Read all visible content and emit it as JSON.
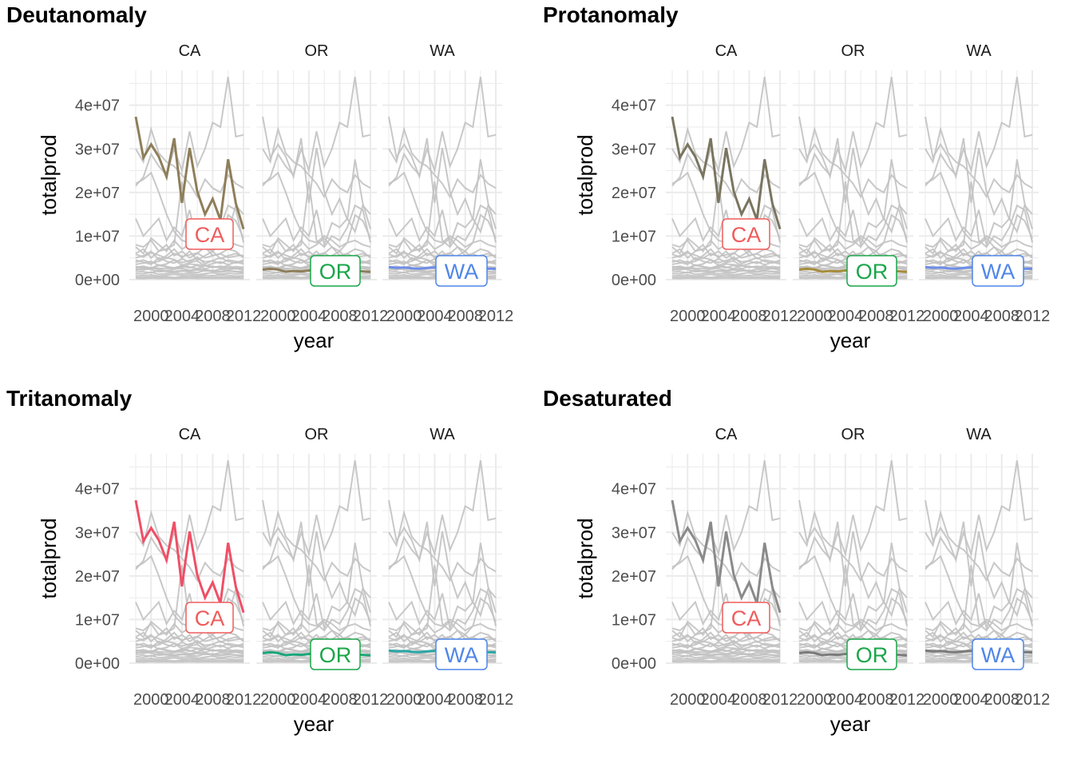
{
  "chart_data": [
    {
      "type": "line",
      "title": "Deutanomaly",
      "facets": [
        "CA",
        "OR",
        "WA"
      ],
      "xlabel": "year",
      "ylabel": "totalprod",
      "xticks": [
        "2000",
        "2004",
        "2008",
        "2012"
      ],
      "yticks": [
        "0e+00",
        "1e+07",
        "2e+07",
        "3e+07",
        "4e+07"
      ],
      "ylim": [
        0,
        48000000
      ],
      "xlim": [
        1998,
        2012
      ],
      "grid": true,
      "highlight_colors": {
        "CA": "#8e7e5a",
        "OR": "#8e7e5a",
        "WA": "#6d8ee8"
      },
      "label_colors": {
        "CA": "#ef5c5c",
        "OR": "#1aa64a",
        "WA": "#4f86e8"
      }
    },
    {
      "type": "line",
      "title": "Protanomaly",
      "facets": [
        "CA",
        "OR",
        "WA"
      ],
      "xlabel": "year",
      "ylabel": "totalprod",
      "xticks": [
        "2000",
        "2004",
        "2008",
        "2012"
      ],
      "yticks": [
        "0e+00",
        "1e+07",
        "2e+07",
        "3e+07",
        "4e+07"
      ],
      "ylim": [
        0,
        48000000
      ],
      "xlim": [
        1998,
        2012
      ],
      "grid": true,
      "highlight_colors": {
        "CA": "#7a7560",
        "OR": "#a58c3c",
        "WA": "#6d8ee8"
      },
      "label_colors": {
        "CA": "#ef5c5c",
        "OR": "#1aa64a",
        "WA": "#4f86e8"
      }
    },
    {
      "type": "line",
      "title": "Tritanomaly",
      "facets": [
        "CA",
        "OR",
        "WA"
      ],
      "xlabel": "year",
      "ylabel": "totalprod",
      "xticks": [
        "2000",
        "2004",
        "2008",
        "2012"
      ],
      "yticks": [
        "0e+00",
        "1e+07",
        "2e+07",
        "3e+07",
        "4e+07"
      ],
      "ylim": [
        0,
        48000000
      ],
      "xlim": [
        1998,
        2012
      ],
      "grid": true,
      "highlight_colors": {
        "CA": "#ef4f66",
        "OR": "#1aa67a",
        "WA": "#2aa6a6"
      },
      "label_colors": {
        "CA": "#ef5c5c",
        "OR": "#1aa64a",
        "WA": "#4f86e8"
      }
    },
    {
      "type": "line",
      "title": "Desaturated",
      "facets": [
        "CA",
        "OR",
        "WA"
      ],
      "xlabel": "year",
      "ylabel": "totalprod",
      "xticks": [
        "2000",
        "2004",
        "2008",
        "2012"
      ],
      "yticks": [
        "0e+00",
        "1e+07",
        "2e+07",
        "3e+07",
        "4e+07"
      ],
      "ylim": [
        0,
        48000000
      ],
      "xlim": [
        1998,
        2012
      ],
      "grid": true,
      "highlight_colors": {
        "CA": "#8a8a8a",
        "OR": "#7a7a7a",
        "WA": "#7a7a7a"
      },
      "label_colors": {
        "CA": "#ef5c5c",
        "OR": "#1aa64a",
        "WA": "#4f86e8"
      }
    }
  ],
  "series": {
    "years": [
      1998,
      1999,
      2000,
      2001,
      2002,
      2003,
      2004,
      2005,
      2006,
      2007,
      2008,
      2009,
      2010,
      2011,
      2012
    ],
    "CA": [
      37350000,
      28000000,
      31000000,
      28200000,
      23600000,
      32400000,
      17600000,
      30200000,
      20200000,
      15000000,
      18500000,
      13700000,
      27600000,
      17500000,
      11600000
    ],
    "OR": [
      2300000,
      2500000,
      2300000,
      1800000,
      2000000,
      1900000,
      2100000,
      2000000,
      2200000,
      2000000,
      2100000,
      1900000,
      2000000,
      1900000,
      1800000
    ],
    "WA": [
      2900000,
      2700000,
      2800000,
      2600000,
      2500000,
      2700000,
      2800000,
      3600000,
      3400000,
      3200000,
      3000000,
      2700000,
      2600000,
      2500000,
      2500000
    ],
    "others": [
      [
        22000000,
        23000000,
        24500000,
        20000000,
        15000000,
        11000000,
        9000000,
        8500000,
        10000000,
        9000000,
        7500000,
        8500000,
        14800000,
        13500000,
        9500000
      ],
      [
        21500000,
        23500000,
        28800000,
        26000000,
        24000000,
        30000000,
        25000000,
        34000000,
        26000000,
        30000000,
        36000000,
        35000000,
        46500000,
        32800000,
        33200000
      ],
      [
        14000000,
        10000000,
        12000000,
        14000000,
        9000000,
        12000000,
        10000000,
        16000000,
        8000000,
        13000000,
        12000000,
        14000000,
        11000000,
        17000000,
        15000000
      ],
      [
        30000000,
        27000000,
        34500000,
        29000000,
        27000000,
        26000000,
        24000000,
        22000000,
        19000000,
        23000000,
        21000000,
        20000000,
        24000000,
        22000000,
        21000000
      ],
      [
        8000000,
        7500000,
        9000000,
        6500000,
        7000000,
        8000000,
        22500000,
        9000000,
        7500000,
        10000000,
        9000000,
        12000000,
        17000000,
        16000000,
        8500000
      ],
      [
        7500000,
        6000000,
        9500000,
        8000000,
        6500000,
        9000000,
        7000000,
        8000000,
        9500000,
        7500000,
        6500000,
        8500000,
        9000000,
        8000000,
        7500000
      ],
      [
        6000000,
        7000000,
        5000000,
        6500000,
        8000000,
        5500000,
        6500000,
        5000000,
        6000000,
        7500000,
        5500000,
        6000000,
        7000000,
        6500000,
        5000000
      ],
      [
        5000000,
        5500000,
        6500000,
        4500000,
        5500000,
        7000000,
        5000000,
        6500000,
        4500000,
        5500000,
        6500000,
        4800000,
        5500000,
        6000000,
        5200000
      ],
      [
        4500000,
        4000000,
        3500000,
        5000000,
        4200000,
        3800000,
        4800000,
        4000000,
        5200000,
        3600000,
        4400000,
        5000000,
        4200000,
        3800000,
        4500000
      ],
      [
        3500000,
        3800000,
        4200000,
        3200000,
        3600000,
        4500000,
        3300000,
        3900000,
        4300000,
        3100000,
        3700000,
        4100000,
        3400000,
        4000000,
        3600000
      ],
      [
        3000000,
        2800000,
        2500000,
        3300000,
        2900000,
        2600000,
        3100000,
        2700000,
        3300000,
        2500000,
        3000000,
        2800000,
        3200000,
        2600000,
        2900000
      ],
      [
        2500000,
        2200000,
        2700000,
        2300000,
        2000000,
        2400000,
        2600000,
        2100000,
        2500000,
        2300000,
        2000000,
        2400000,
        2200000,
        2600000,
        2100000
      ],
      [
        2000000,
        1800000,
        1600000,
        2100000,
        1900000,
        1700000,
        2000000,
        1800000,
        1600000,
        2100000,
        1900000,
        1700000,
        2000000,
        1800000,
        1600000
      ],
      [
        1500000,
        1300000,
        1700000,
        1200000,
        1400000,
        1600000,
        1300000,
        1500000,
        1100000,
        1400000,
        1600000,
        1200000,
        1500000,
        1300000,
        1400000
      ],
      [
        1000000,
        900000,
        1100000,
        800000,
        1000000,
        1200000,
        900000,
        1100000,
        800000,
        1000000,
        900000,
        1100000,
        1000000,
        800000,
        900000
      ],
      [
        600000,
        500000,
        700000,
        550000,
        650000,
        500000,
        600000,
        700000,
        550000,
        600000,
        500000,
        650000,
        600000,
        550000,
        500000
      ],
      [
        300000,
        250000,
        350000,
        280000,
        320000,
        260000,
        300000,
        340000,
        270000,
        310000,
        290000,
        330000,
        280000,
        300000,
        260000
      ],
      [
        4000000,
        4500000,
        3800000,
        4200000,
        5000000,
        4600000,
        3900000,
        4400000,
        4800000,
        4100000,
        4300000,
        3700000,
        4500000,
        4200000,
        4000000
      ],
      [
        5800000,
        5200000,
        6200000,
        5600000,
        4900000,
        6000000,
        5300000,
        5700000,
        6100000,
        5000000,
        5500000,
        5900000,
        5100000,
        5400000,
        5600000
      ],
      [
        2800000,
        3100000,
        2600000,
        3400000,
        3000000,
        2700000,
        3200000,
        2900000,
        2500000,
        3300000,
        2800000,
        3100000,
        2700000,
        3000000,
        2800000
      ]
    ]
  }
}
